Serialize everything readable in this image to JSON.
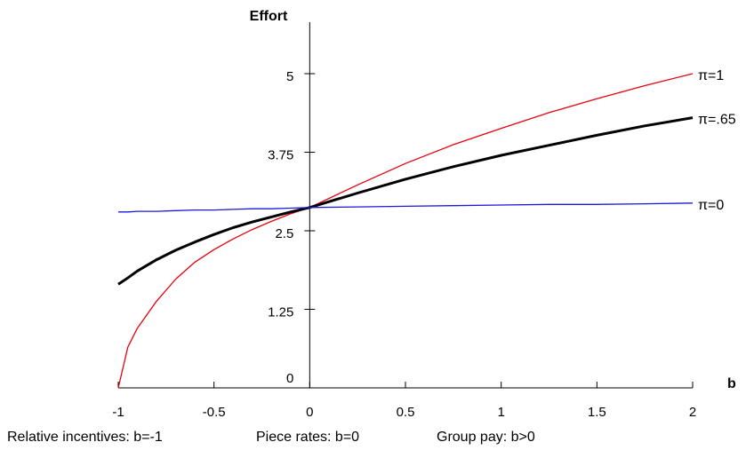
{
  "chart_data": {
    "type": "line",
    "xlabel": "b",
    "ylabel": "Effort",
    "xlim": [
      -1,
      2
    ],
    "ylim": [
      0,
      5
    ],
    "x_ticks": [
      "-1",
      "-0.5",
      "0",
      "0.5",
      "1",
      "1.5",
      "2"
    ],
    "y_ticks": [
      "0",
      "1.25",
      "2.5",
      "3.75",
      "5"
    ],
    "grid": false,
    "x": [
      -1,
      -0.95,
      -0.9,
      -0.8,
      -0.7,
      -0.6,
      -0.5,
      -0.4,
      -0.3,
      -0.2,
      -0.1,
      0,
      0.25,
      0.5,
      0.75,
      1,
      1.25,
      1.5,
      1.75,
      2
    ],
    "series": [
      {
        "name": "π=1",
        "color": "#e8000b",
        "values": [
          0,
          0.65,
          0.95,
          1.38,
          1.73,
          2.0,
          2.2,
          2.37,
          2.52,
          2.65,
          2.77,
          2.87,
          3.23,
          3.57,
          3.87,
          4.13,
          4.38,
          4.6,
          4.81,
          5.0
        ]
      },
      {
        "name": "π=.65",
        "color": "#000000",
        "values": [
          1.65,
          1.75,
          1.86,
          2.04,
          2.19,
          2.32,
          2.44,
          2.55,
          2.64,
          2.72,
          2.8,
          2.87,
          3.1,
          3.32,
          3.52,
          3.7,
          3.86,
          4.02,
          4.17,
          4.3
        ]
      },
      {
        "name": "π=0",
        "color": "#1a1adb",
        "values": [
          2.8,
          2.8,
          2.81,
          2.81,
          2.82,
          2.83,
          2.83,
          2.84,
          2.85,
          2.85,
          2.86,
          2.87,
          2.88,
          2.89,
          2.9,
          2.91,
          2.92,
          2.92,
          2.93,
          2.94
        ]
      }
    ],
    "annotations": [
      "Relative incentives: b=-1",
      "Piece rates: b=0",
      "Group pay: b>0"
    ]
  }
}
